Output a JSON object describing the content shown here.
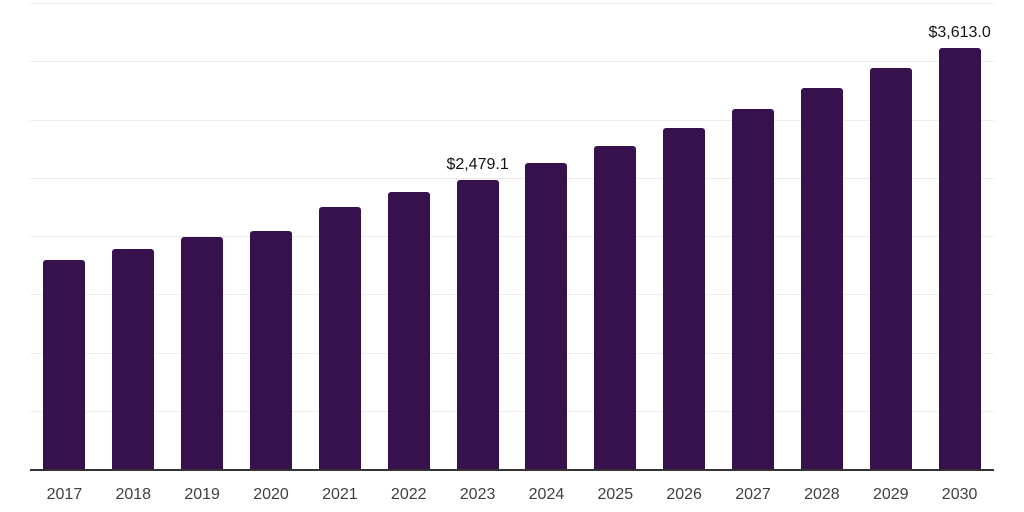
{
  "chart": {
    "colors": {
      "bar": "#36114D",
      "gridline": "#ededed",
      "axis_line": "#333333",
      "tick_label": "#404040",
      "data_label": "#141414",
      "background": "#ffffff"
    }
  },
  "chart_data": {
    "type": "bar",
    "title": "",
    "xlabel": "",
    "ylabel": "",
    "categories": [
      "2017",
      "2018",
      "2019",
      "2020",
      "2021",
      "2022",
      "2023",
      "2024",
      "2025",
      "2026",
      "2027",
      "2028",
      "2029",
      "2030"
    ],
    "values": [
      1795,
      1890,
      1990,
      2045,
      2250,
      2380,
      2479.1,
      2625,
      2775,
      2925,
      3090,
      3270,
      3440,
      3613.0
    ],
    "data_labels": [
      "",
      "",
      "",
      "",
      "",
      "",
      "$2,479.1",
      "",
      "",
      "",
      "",
      "",
      "",
      "$3,613.0"
    ],
    "ylim": [
      0,
      4000
    ],
    "gridline_interval": 500,
    "grid": "horizontal-only",
    "y_tick_labels_shown": false,
    "legend_position": "none"
  }
}
